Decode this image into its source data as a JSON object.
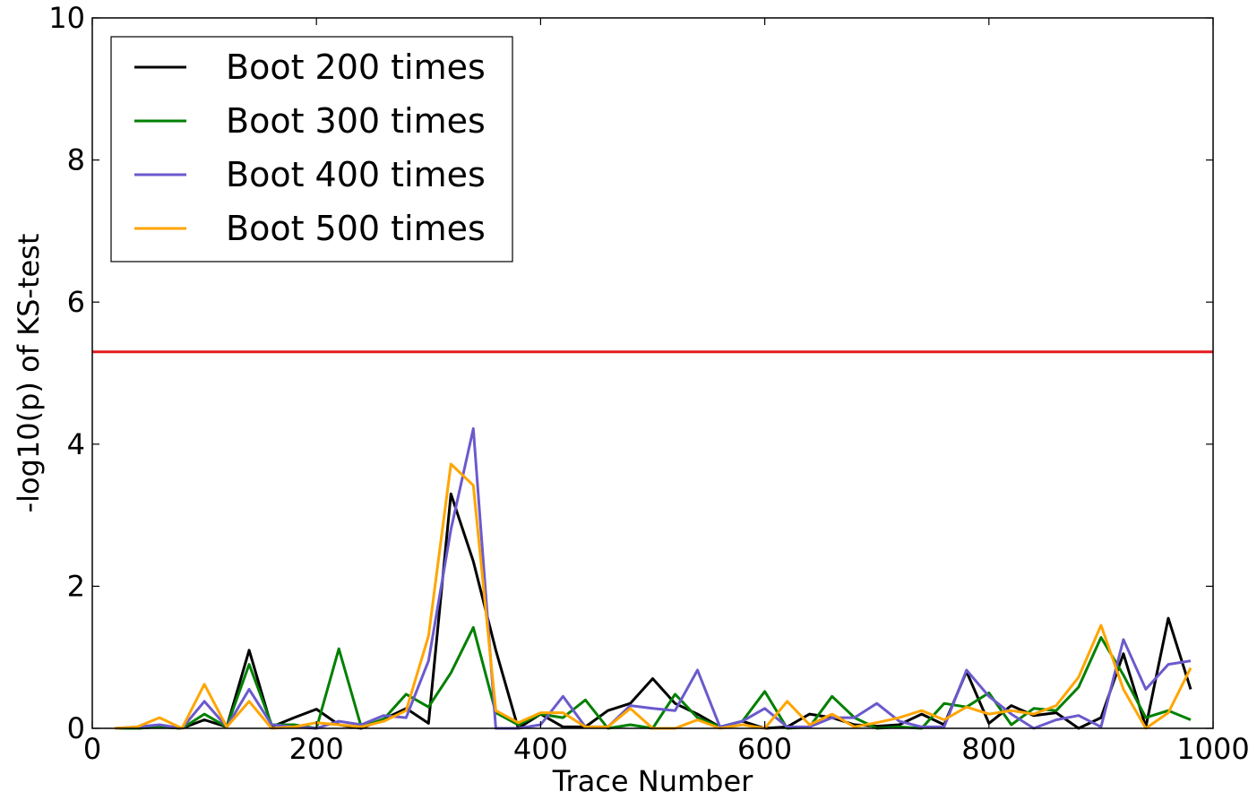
{
  "chart_data": {
    "type": "line",
    "xlabel": "Trace Number",
    "ylabel": "-log10(p) of KS-test",
    "xlim": [
      0,
      1000
    ],
    "ylim": [
      0,
      10
    ],
    "xticks": [
      "0",
      "200",
      "400",
      "600",
      "800",
      "1000"
    ],
    "yticks": [
      "0",
      "2",
      "4",
      "6",
      "8",
      "10"
    ],
    "grid": false,
    "legend_position": "top-left",
    "threshold": {
      "y": 5.3,
      "color": "#e41a1c"
    },
    "x": [
      20,
      40,
      60,
      80,
      100,
      120,
      140,
      160,
      180,
      200,
      220,
      240,
      260,
      280,
      300,
      320,
      340,
      360,
      380,
      400,
      420,
      440,
      460,
      480,
      500,
      520,
      540,
      560,
      580,
      600,
      620,
      640,
      660,
      680,
      700,
      720,
      740,
      760,
      780,
      800,
      820,
      840,
      860,
      880,
      900,
      920,
      940,
      960,
      980
    ],
    "series": [
      {
        "name": "Boot 200 times",
        "color": "#000000",
        "values": [
          0.0,
          0.0,
          0.02,
          0.0,
          0.12,
          0.02,
          1.1,
          0.02,
          0.15,
          0.27,
          0.05,
          0.0,
          0.13,
          0.28,
          0.07,
          3.3,
          2.35,
          1.1,
          0.0,
          0.2,
          0.02,
          0.02,
          0.25,
          0.35,
          0.7,
          0.35,
          0.2,
          0.02,
          0.1,
          0.0,
          0.02,
          0.2,
          0.15,
          0.05,
          0.03,
          0.05,
          0.2,
          0.05,
          0.8,
          0.07,
          0.32,
          0.18,
          0.22,
          0.0,
          0.15,
          1.05,
          0.02,
          1.55,
          0.55
        ]
      },
      {
        "name": "Boot 300 times",
        "color": "#008000",
        "values": [
          0.0,
          0.0,
          0.02,
          0.0,
          0.2,
          0.02,
          0.9,
          0.05,
          0.05,
          0.0,
          1.12,
          0.02,
          0.13,
          0.48,
          0.3,
          0.78,
          1.42,
          0.22,
          0.05,
          0.2,
          0.15,
          0.4,
          0.0,
          0.05,
          0.0,
          0.48,
          0.15,
          0.02,
          0.1,
          0.52,
          0.0,
          0.02,
          0.45,
          0.15,
          0.0,
          0.02,
          0.0,
          0.35,
          0.3,
          0.5,
          0.05,
          0.28,
          0.25,
          0.58,
          1.28,
          0.75,
          0.15,
          0.25,
          0.12
        ]
      },
      {
        "name": "Boot 400 times",
        "color": "#6a5acd",
        "values": [
          0.0,
          0.02,
          0.05,
          0.0,
          0.38,
          0.02,
          0.55,
          0.05,
          0.02,
          0.0,
          0.1,
          0.05,
          0.18,
          0.15,
          0.95,
          2.8,
          4.22,
          0.0,
          0.0,
          0.05,
          0.45,
          0.02,
          0.02,
          0.32,
          0.28,
          0.25,
          0.82,
          0.02,
          0.1,
          0.28,
          0.02,
          0.02,
          0.15,
          0.15,
          0.35,
          0.1,
          0.02,
          0.02,
          0.82,
          0.45,
          0.2,
          0.0,
          0.12,
          0.18,
          0.02,
          1.25,
          0.55,
          0.9,
          0.95
        ]
      },
      {
        "name": "Boot 500 times",
        "color": "#ffa500",
        "values": [
          0.0,
          0.02,
          0.15,
          0.0,
          0.62,
          0.02,
          0.38,
          0.0,
          0.02,
          0.08,
          0.05,
          0.02,
          0.1,
          0.25,
          1.3,
          3.72,
          3.42,
          0.25,
          0.08,
          0.22,
          0.22,
          0.02,
          0.02,
          0.28,
          0.0,
          0.0,
          0.12,
          0.0,
          0.05,
          0.0,
          0.38,
          0.05,
          0.2,
          0.02,
          0.08,
          0.15,
          0.25,
          0.12,
          0.3,
          0.2,
          0.25,
          0.2,
          0.32,
          0.72,
          1.45,
          0.55,
          0.0,
          0.22,
          0.85
        ]
      }
    ]
  }
}
